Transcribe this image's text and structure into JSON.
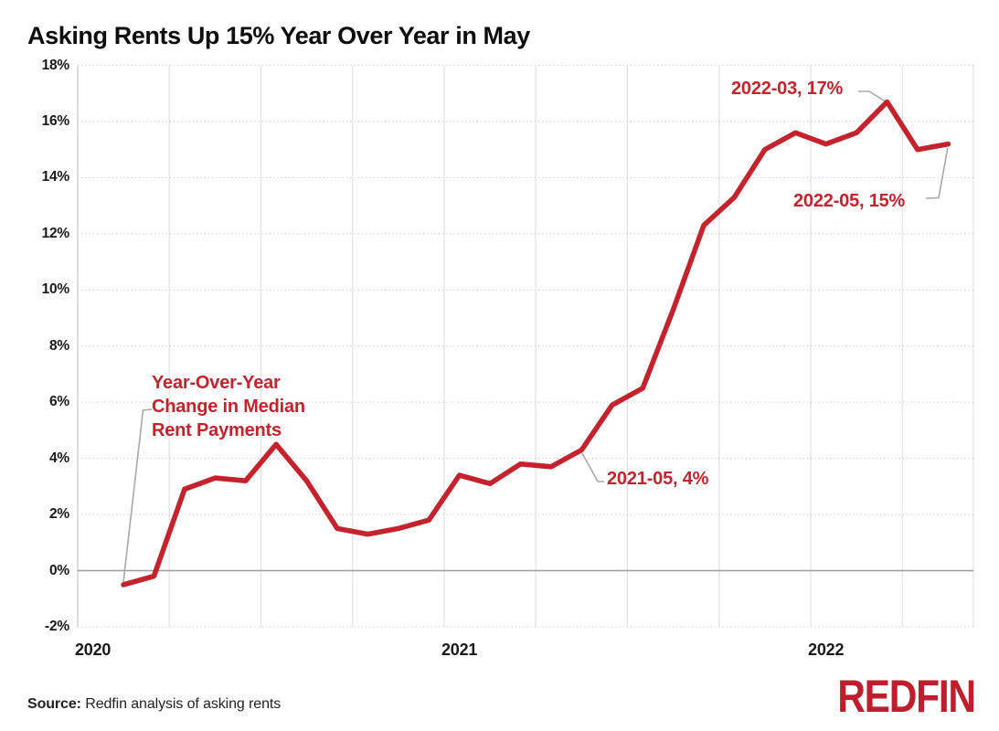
{
  "title": "Asking Rents Up 15% Year Over Year in May",
  "colors": {
    "line": "#c4232e",
    "annotation": "#c4232e",
    "logo": "#bf1e2e",
    "grid_dotted": "#cdcdcd",
    "grid_vertical": "#e2e2e2",
    "zero_axis": "#9c9c9c",
    "callout": "#a8a8a8",
    "text": "#1a1a1a"
  },
  "y_axis": {
    "labels": [
      "18%",
      "16%",
      "14%",
      "12%",
      "10%",
      "8%",
      "6%",
      "4%",
      "2%",
      "0%",
      "-2%"
    ],
    "max": 18,
    "min": -2,
    "step": 2
  },
  "x_axis": {
    "labels": [
      "2020",
      "2021",
      "2022"
    ]
  },
  "annotations": {
    "series_label": {
      "lines": [
        "Year-Over-Year",
        "Change in Median",
        "Rent Payments"
      ]
    },
    "point_2021_05": "2021-05, 4%",
    "point_2022_03": "2022-03, 17%",
    "point_2022_05": "2022-05, 15%"
  },
  "source": {
    "label": "Source:",
    "text": "Redfin analysis of asking rents"
  },
  "logo_text": "REDFIN",
  "chart_data": {
    "type": "line",
    "title": "Asking Rents Up 15% Year Over Year in May",
    "series_name": "Year-Over-Year Change in Median Rent Payments",
    "x": [
      "2020-02",
      "2020-03",
      "2020-04",
      "2020-05",
      "2020-06",
      "2020-07",
      "2020-08",
      "2020-09",
      "2020-10",
      "2020-11",
      "2020-12",
      "2021-01",
      "2021-02",
      "2021-03",
      "2021-04",
      "2021-05",
      "2021-06",
      "2021-07",
      "2021-08",
      "2021-09",
      "2021-10",
      "2021-11",
      "2021-12",
      "2022-01",
      "2022-02",
      "2022-03",
      "2022-04",
      "2022-05"
    ],
    "values": [
      -0.5,
      -0.2,
      2.9,
      3.3,
      3.2,
      4.5,
      3.2,
      1.5,
      1.3,
      1.5,
      1.8,
      3.4,
      3.1,
      3.8,
      3.7,
      4.3,
      5.9,
      6.5,
      9.3,
      12.3,
      13.3,
      15.0,
      15.6,
      15.2,
      15.6,
      16.7,
      15.0,
      15.2
    ],
    "ylim": [
      -2,
      18
    ],
    "y_tick_step": 2,
    "y_tick_format": "percent",
    "x_tick_labels": [
      "2020",
      "2021",
      "2022"
    ],
    "grid": true,
    "legend": "none",
    "line_color": "#c4232e",
    "annotated_points": [
      {
        "x": "2021-05",
        "label": "2021-05, 4%"
      },
      {
        "x": "2022-03",
        "label": "2022-03, 17%"
      },
      {
        "x": "2022-05",
        "label": "2022-05, 15%"
      }
    ]
  }
}
